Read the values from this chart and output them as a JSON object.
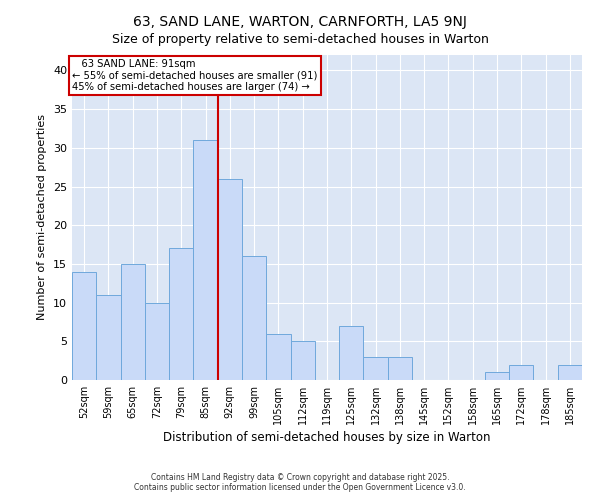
{
  "title": "63, SAND LANE, WARTON, CARNFORTH, LA5 9NJ",
  "subtitle": "Size of property relative to semi-detached houses in Warton",
  "xlabel": "Distribution of semi-detached houses by size in Warton",
  "ylabel": "Number of semi-detached properties",
  "categories": [
    "52sqm",
    "59sqm",
    "65sqm",
    "72sqm",
    "79sqm",
    "85sqm",
    "92sqm",
    "99sqm",
    "105sqm",
    "112sqm",
    "119sqm",
    "125sqm",
    "132sqm",
    "138sqm",
    "145sqm",
    "152sqm",
    "158sqm",
    "165sqm",
    "172sqm",
    "178sqm",
    "185sqm"
  ],
  "values": [
    14,
    11,
    15,
    10,
    17,
    31,
    26,
    16,
    6,
    5,
    0,
    7,
    3,
    3,
    0,
    0,
    0,
    1,
    2,
    0,
    2
  ],
  "bar_color": "#c9daf8",
  "bar_edge_color": "#6fa8dc",
  "vline_color": "#cc0000",
  "annotation_title": "63 SAND LANE: 91sqm",
  "annotation_line1": "← 55% of semi-detached houses are smaller (91)",
  "annotation_line2": "45% of semi-detached houses are larger (74) →",
  "annotation_box_edge": "#cc0000",
  "ylim": [
    0,
    42
  ],
  "yticks": [
    0,
    5,
    10,
    15,
    20,
    25,
    30,
    35,
    40
  ],
  "bg_color": "#dce6f5",
  "footer1": "Contains HM Land Registry data © Crown copyright and database right 2025.",
  "footer2": "Contains public sector information licensed under the Open Government Licence v3.0.",
  "title_fontsize": 10,
  "subtitle_fontsize": 9,
  "bar_width": 1.0
}
